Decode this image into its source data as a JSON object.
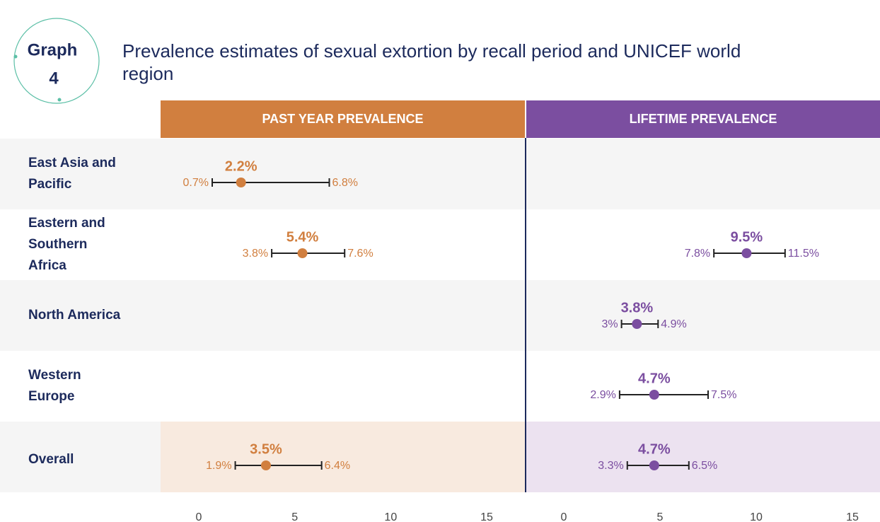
{
  "badge": {
    "word": "Graph",
    "number": 4
  },
  "chart_data": {
    "type": "errorbar",
    "title": "Prevalence estimates of sexual extortion by recall period and UNICEF world region",
    "categories": [
      "East Asia and Pacific",
      "Eastern and Southern Africa",
      "North America",
      "Western Europe",
      "Overall"
    ],
    "xlim": [
      0,
      15
    ],
    "xticks": [
      0,
      5,
      10,
      15
    ],
    "series": [
      {
        "name": "PAST YEAR PREVALENCE",
        "color": "#d17f3f",
        "values": [
          2.2,
          5.4,
          null,
          null,
          3.5
        ],
        "lower": [
          0.7,
          3.8,
          null,
          null,
          1.9
        ],
        "upper": [
          6.8,
          7.6,
          null,
          null,
          6.4
        ],
        "value_labels": [
          "2.2%",
          "5.4%",
          null,
          null,
          "3.5%"
        ],
        "lower_labels": [
          "0.7%",
          "3.8%",
          null,
          null,
          "1.9%"
        ],
        "upper_labels": [
          "6.8%",
          "7.6%",
          null,
          null,
          "6.4%"
        ]
      },
      {
        "name": "LIFETIME PREVALENCE",
        "color": "#7b4ea0",
        "values": [
          null,
          9.5,
          3.8,
          4.7,
          4.7
        ],
        "lower": [
          null,
          7.8,
          3,
          2.9,
          3.3
        ],
        "upper": [
          null,
          11.5,
          4.9,
          7.5,
          6.5
        ],
        "value_labels": [
          null,
          "9.5%",
          "3.8%",
          "4.7%",
          "4.7%"
        ],
        "lower_labels": [
          null,
          "7.8%",
          "3%",
          "2.9%",
          "3.3%"
        ],
        "upper_labels": [
          null,
          "11.5%",
          "4.9%",
          "7.5%",
          "6.5%"
        ]
      }
    ]
  }
}
